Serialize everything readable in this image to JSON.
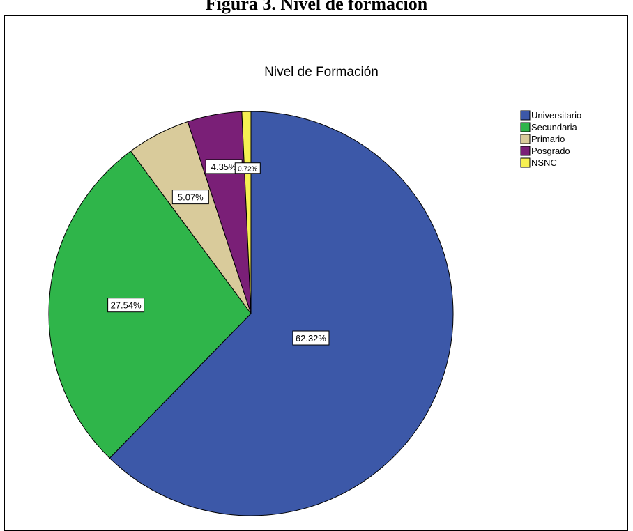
{
  "figure": {
    "caption": "Figura 3. Nivel de formación"
  },
  "chart_data": {
    "type": "pie",
    "title": "Nivel de Formación",
    "legend_position": "top-right",
    "start_angle": "12 o'clock",
    "direction": "clockwise",
    "slices": [
      {
        "label": "Universitario",
        "value": 62.32,
        "display": "62.32%",
        "color": "#3c58a8"
      },
      {
        "label": "Secundaria",
        "value": 27.54,
        "display": "27.54%",
        "color": "#2fb54a"
      },
      {
        "label": "Primario",
        "value": 5.07,
        "display": "5.07%",
        "color": "#d9cb9b"
      },
      {
        "label": "Posgrado",
        "value": 4.35,
        "display": "4.35%",
        "color": "#7a1f77"
      },
      {
        "label": "NSNC",
        "value": 0.72,
        "display": "0.72%",
        "color": "#f6f052"
      }
    ]
  }
}
